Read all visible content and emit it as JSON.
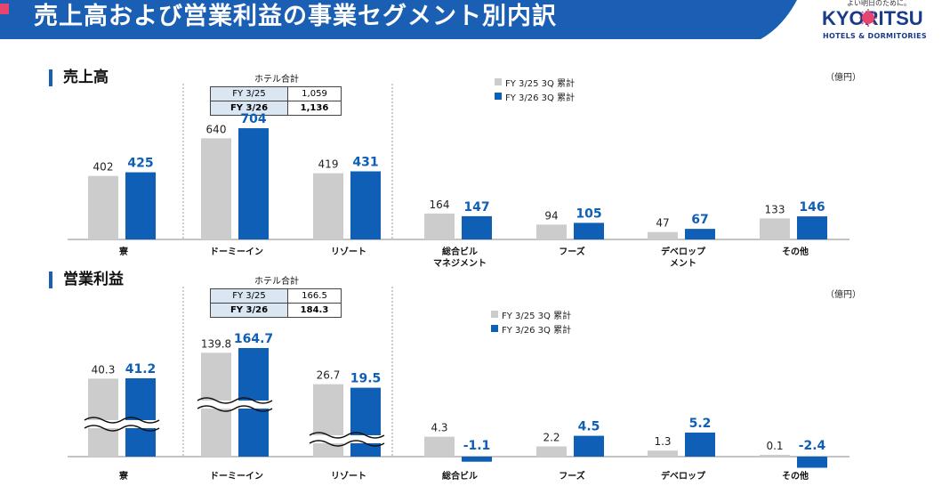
{
  "header": {
    "title": "売上高および営業利益の事業セグメント別内訳",
    "logo": {
      "name": "KYORITSU",
      "sub": "HOTELS & DORMITORIES",
      "tagline": "よい明日のために。"
    }
  },
  "colors": {
    "prev": "#cccccc",
    "curr": "#0e5fb5",
    "curr_text": "#0e5fb5",
    "header_blue": "#1a5fb4"
  },
  "sales": {
    "section_title": "売上高",
    "unit": "（億円）",
    "legend": [
      "FY 3/25 3Q 累計",
      "FY 3/26 3Q 累計"
    ],
    "hotel_total": {
      "title": "ホテル合計",
      "rows": [
        {
          "label": "FY 3/25",
          "value": "1,059"
        },
        {
          "label": "FY 3/26",
          "value": "1,136"
        }
      ]
    }
  },
  "profit": {
    "section_title": "営業利益",
    "unit": "（億円）",
    "legend": [
      "FY 3/25 3Q 累計",
      "FY 3/26 3Q 累計"
    ],
    "hotel_total": {
      "title": "ホテル合計",
      "rows": [
        {
          "label": "FY 3/25",
          "value": "166.5"
        },
        {
          "label": "FY 3/26",
          "value": "184.3"
        }
      ]
    }
  },
  "chart_data": [
    {
      "type": "bar",
      "title": "売上高",
      "unit": "億円",
      "categories": [
        "寮",
        "ドーミーイン",
        "リゾート",
        "総合ビル\nマネジメント",
        "フーズ",
        "デベロップ\nメント",
        "その他"
      ],
      "series": [
        {
          "name": "FY 3/25 3Q 累計",
          "values": [
            402,
            640,
            419,
            164,
            94,
            47,
            133
          ],
          "labels": [
            "402",
            "640",
            "419",
            "164",
            "94",
            "47",
            "133"
          ]
        },
        {
          "name": "FY 3/26 3Q 累計",
          "values": [
            425,
            704,
            431,
            147,
            105,
            67,
            146
          ],
          "labels": [
            "425",
            "704",
            "431",
            "147",
            "105",
            "67",
            "146"
          ]
        }
      ],
      "ylim": [
        0,
        704
      ]
    },
    {
      "type": "bar",
      "title": "営業利益",
      "unit": "億円",
      "categories": [
        "寮",
        "ドーミーイン",
        "リゾート",
        "総合ビル\nマネジメント",
        "フーズ",
        "デベロップ\nメント",
        "その他"
      ],
      "series": [
        {
          "name": "FY 3/25 3Q 累計",
          "values": [
            40.3,
            139.8,
            26.7,
            4.3,
            2.2,
            1.3,
            0.1
          ],
          "labels": [
            "40.3",
            "139.8",
            "26.7",
            "4.3",
            "2.2",
            "1.3",
            "0.1"
          ]
        },
        {
          "name": "FY 3/26 3Q 累計",
          "values": [
            41.2,
            164.7,
            19.5,
            -1.1,
            4.5,
            5.2,
            -2.4
          ],
          "labels": [
            "41.2",
            "164.7",
            "19.5",
            "-1.1",
            "4.5",
            "5.2",
            "-2.4"
          ]
        }
      ],
      "axis_break": [
        true,
        true,
        true,
        false,
        false,
        false,
        false
      ]
    }
  ]
}
